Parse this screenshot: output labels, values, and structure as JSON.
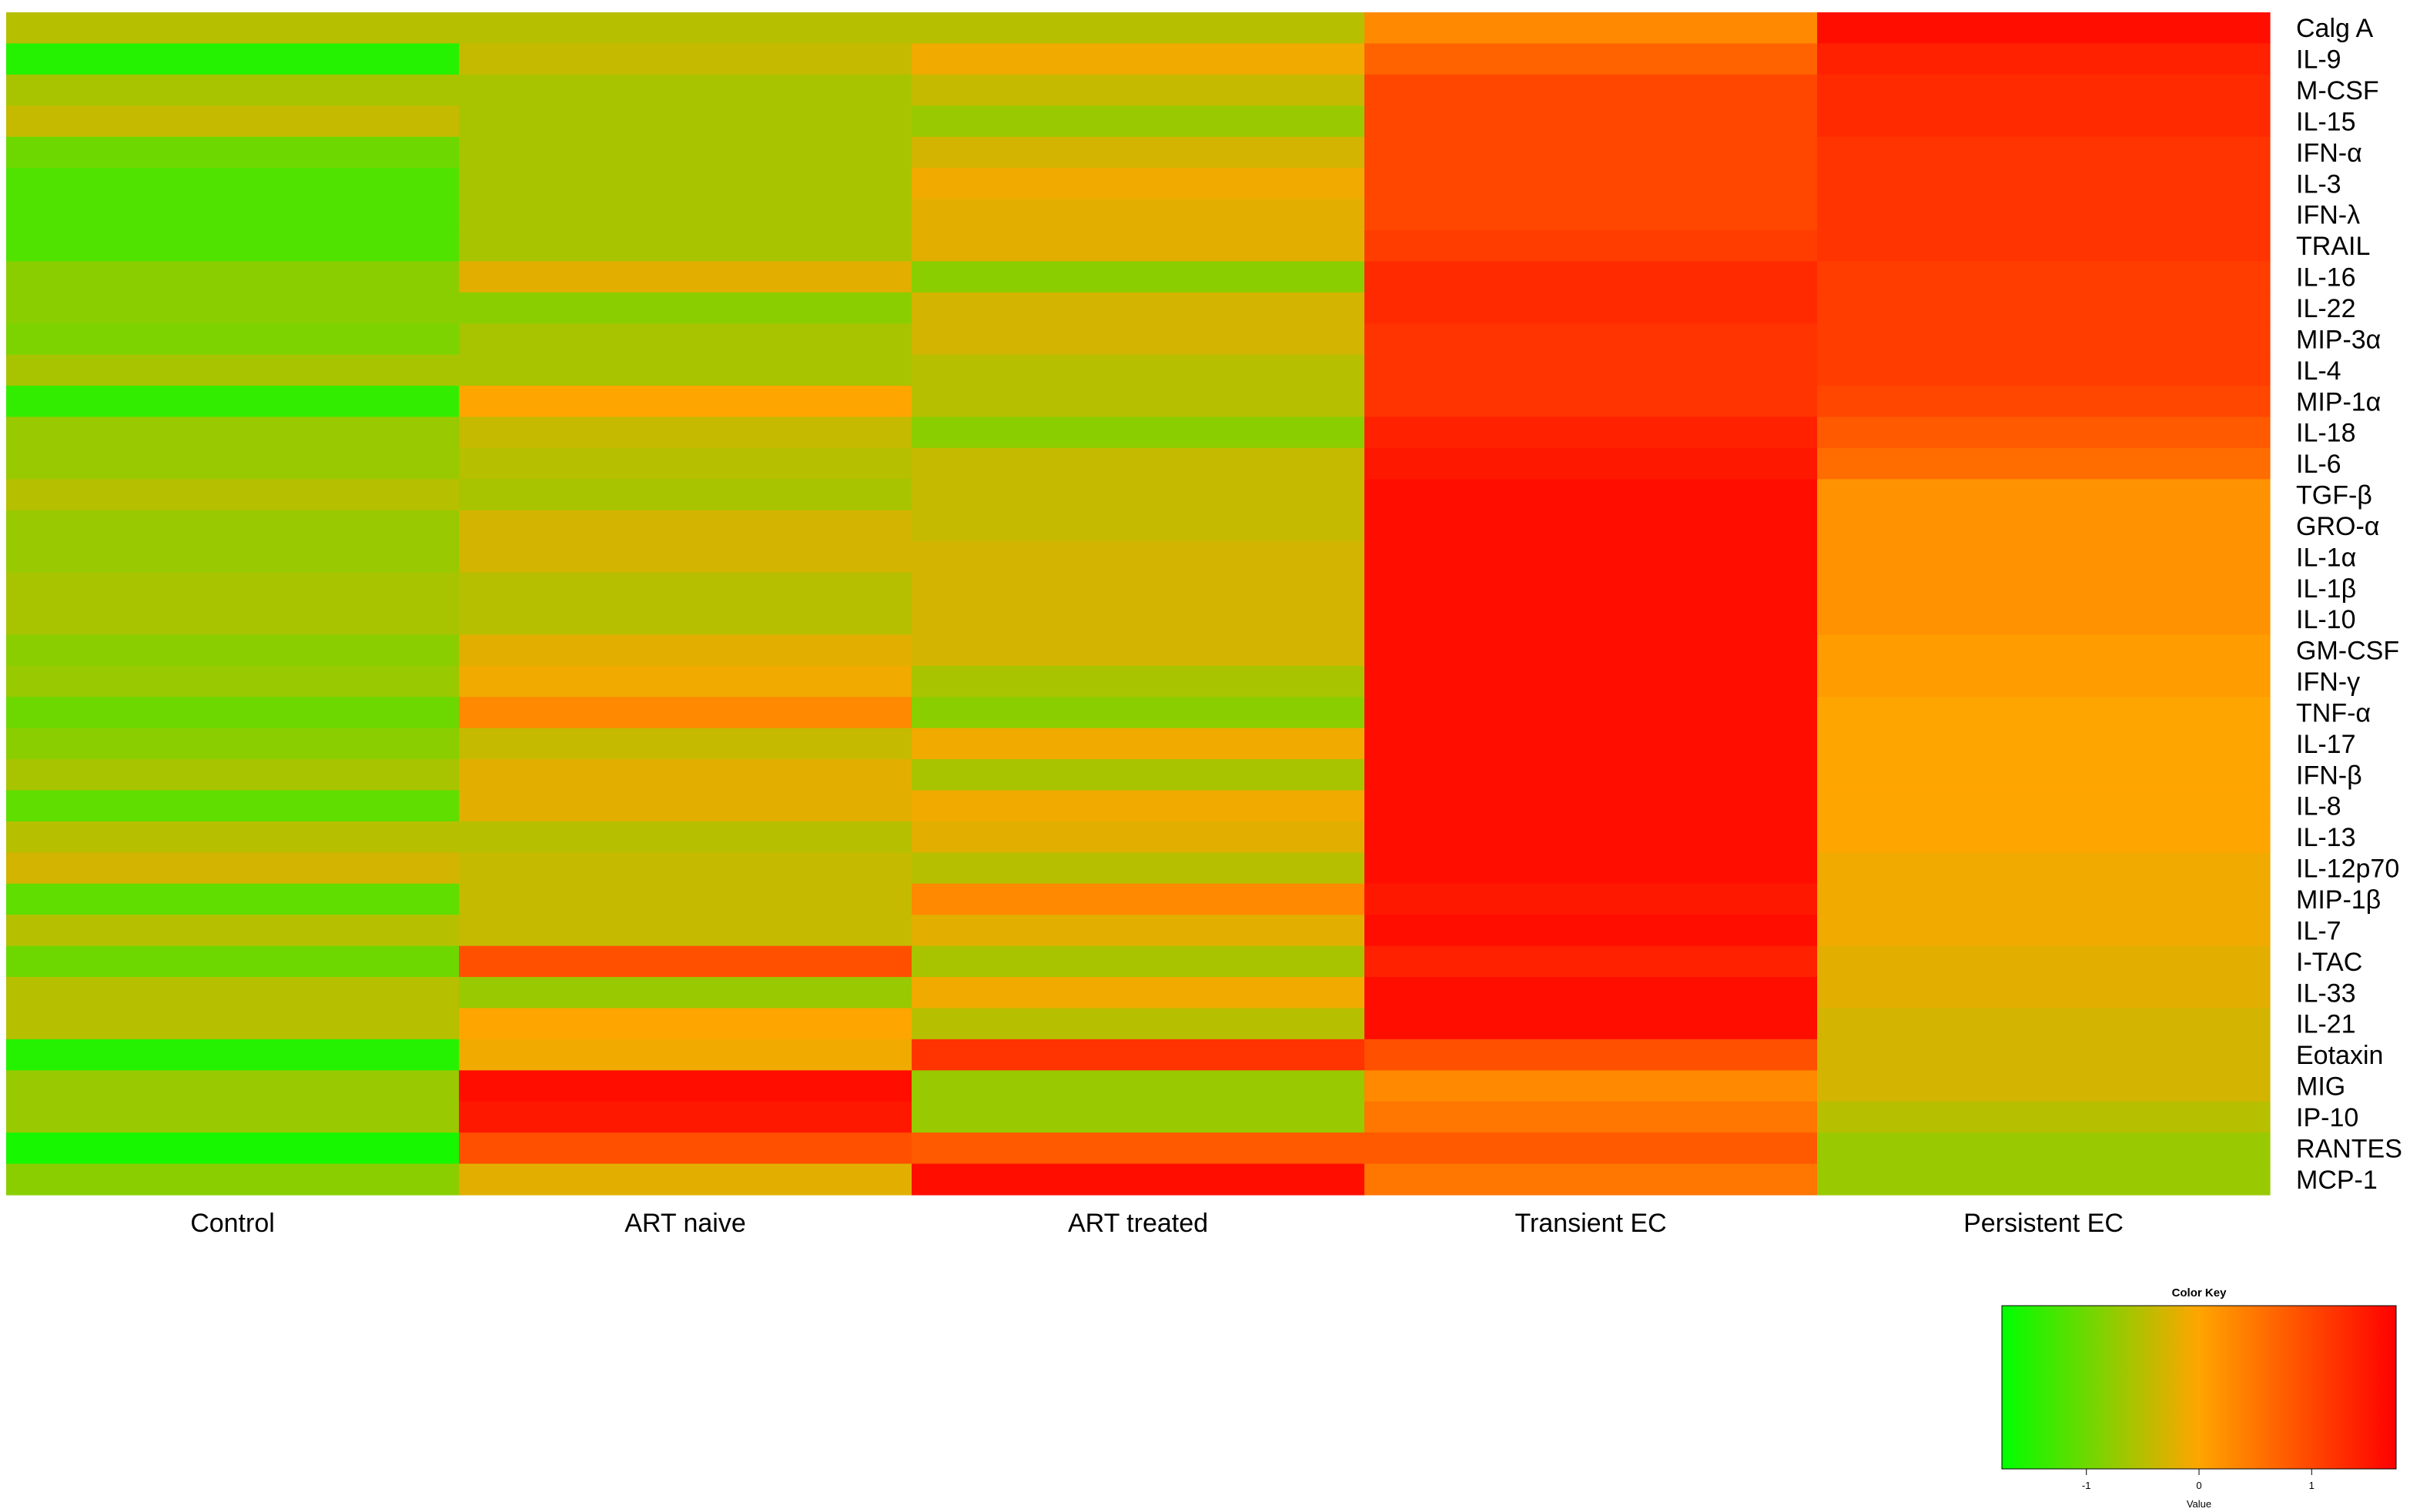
{
  "chart_data": {
    "type": "heatmap",
    "columns": [
      "Control",
      "ART naive",
      "ART treated",
      "Transient EC",
      "Persistent EC"
    ],
    "rows": [
      "Calg A",
      "IL-9",
      "M-CSF",
      "IL-15",
      "IFN-α",
      "IL-3",
      "IFN-λ",
      "TRAIL",
      "IL-16",
      "IL-22",
      "MIP-3α",
      "IL-4",
      "MIP-1α",
      "IL-18",
      "IL-6",
      "TGF-β",
      "GRO-α",
      "IL-1α",
      "IL-1β",
      "IL-10",
      "GM-CSF",
      "IFN-γ",
      "TNF-α",
      "IL-17",
      "IFN-β",
      "IL-8",
      "IL-13",
      "IL-12p70",
      "MIP-1β",
      "IL-7",
      "I-TAC",
      "IL-33",
      "IL-21",
      "Eotaxin",
      "MIG",
      "IP-10",
      "RANTES",
      "MCP-1"
    ],
    "values": [
      [
        -0.5,
        -0.5,
        -0.5,
        0.3,
        1.6
      ],
      [
        -1.5,
        -0.4,
        -0.1,
        0.7,
        1.4
      ],
      [
        -0.6,
        -0.6,
        -0.4,
        1.0,
        1.3
      ],
      [
        -0.4,
        -0.6,
        -0.7,
        1.0,
        1.3
      ],
      [
        -1.0,
        -0.6,
        -0.3,
        1.0,
        1.2
      ],
      [
        -1.2,
        -0.6,
        -0.1,
        1.0,
        1.2
      ],
      [
        -1.2,
        -0.6,
        -0.2,
        1.0,
        1.2
      ],
      [
        -1.2,
        -0.6,
        -0.2,
        1.1,
        1.2
      ],
      [
        -0.8,
        -0.2,
        -0.8,
        1.3,
        1.1
      ],
      [
        -0.8,
        -0.8,
        -0.3,
        1.3,
        1.1
      ],
      [
        -0.9,
        -0.6,
        -0.3,
        1.2,
        1.1
      ],
      [
        -0.6,
        -0.6,
        -0.5,
        1.2,
        1.1
      ],
      [
        -1.4,
        0.0,
        -0.5,
        1.2,
        1.0
      ],
      [
        -0.7,
        -0.4,
        -0.8,
        1.4,
        0.8
      ],
      [
        -0.7,
        -0.5,
        -0.4,
        1.5,
        0.6
      ],
      [
        -0.5,
        -0.6,
        -0.4,
        1.6,
        0.2
      ],
      [
        -0.7,
        -0.3,
        -0.4,
        1.6,
        0.2
      ],
      [
        -0.7,
        -0.3,
        -0.3,
        1.6,
        0.2
      ],
      [
        -0.6,
        -0.5,
        -0.3,
        1.6,
        0.2
      ],
      [
        -0.6,
        -0.5,
        -0.3,
        1.6,
        0.2
      ],
      [
        -0.8,
        -0.2,
        -0.3,
        1.6,
        0.1
      ],
      [
        -0.7,
        -0.1,
        -0.6,
        1.6,
        0.1
      ],
      [
        -1.0,
        0.3,
        -0.8,
        1.6,
        0.0
      ],
      [
        -0.8,
        -0.4,
        -0.1,
        1.6,
        0.0
      ],
      [
        -0.6,
        -0.2,
        -0.6,
        1.6,
        0.0
      ],
      [
        -1.1,
        -0.2,
        -0.1,
        1.6,
        0.0
      ],
      [
        -0.5,
        -0.5,
        -0.2,
        1.6,
        0.0
      ],
      [
        -0.3,
        -0.4,
        -0.5,
        1.6,
        -0.1
      ],
      [
        -1.1,
        -0.4,
        0.3,
        1.5,
        -0.1
      ],
      [
        -0.5,
        -0.4,
        -0.2,
        1.6,
        -0.1
      ],
      [
        -1.0,
        0.9,
        -0.6,
        1.4,
        -0.2
      ],
      [
        -0.5,
        -0.7,
        -0.1,
        1.6,
        -0.2
      ],
      [
        -0.5,
        0.0,
        -0.5,
        1.6,
        -0.3
      ],
      [
        -1.5,
        -0.1,
        1.2,
        0.9,
        -0.3
      ],
      [
        -0.7,
        1.6,
        -0.7,
        0.3,
        -0.3
      ],
      [
        -0.7,
        1.5,
        -0.7,
        0.5,
        -0.5
      ],
      [
        -1.6,
        0.9,
        0.8,
        0.8,
        -0.7
      ],
      [
        -0.8,
        -0.2,
        1.6,
        0.5,
        -0.7
      ]
    ],
    "color_key": {
      "title": "Color Key",
      "xlabel": "Value",
      "ticks": [
        "-1",
        "0",
        "1"
      ],
      "tick_values": [
        -1,
        0,
        1
      ],
      "range": [
        -1.75,
        1.75
      ],
      "colors": [
        "#00ff00",
        "#ffa500",
        "#ff0000"
      ]
    }
  }
}
